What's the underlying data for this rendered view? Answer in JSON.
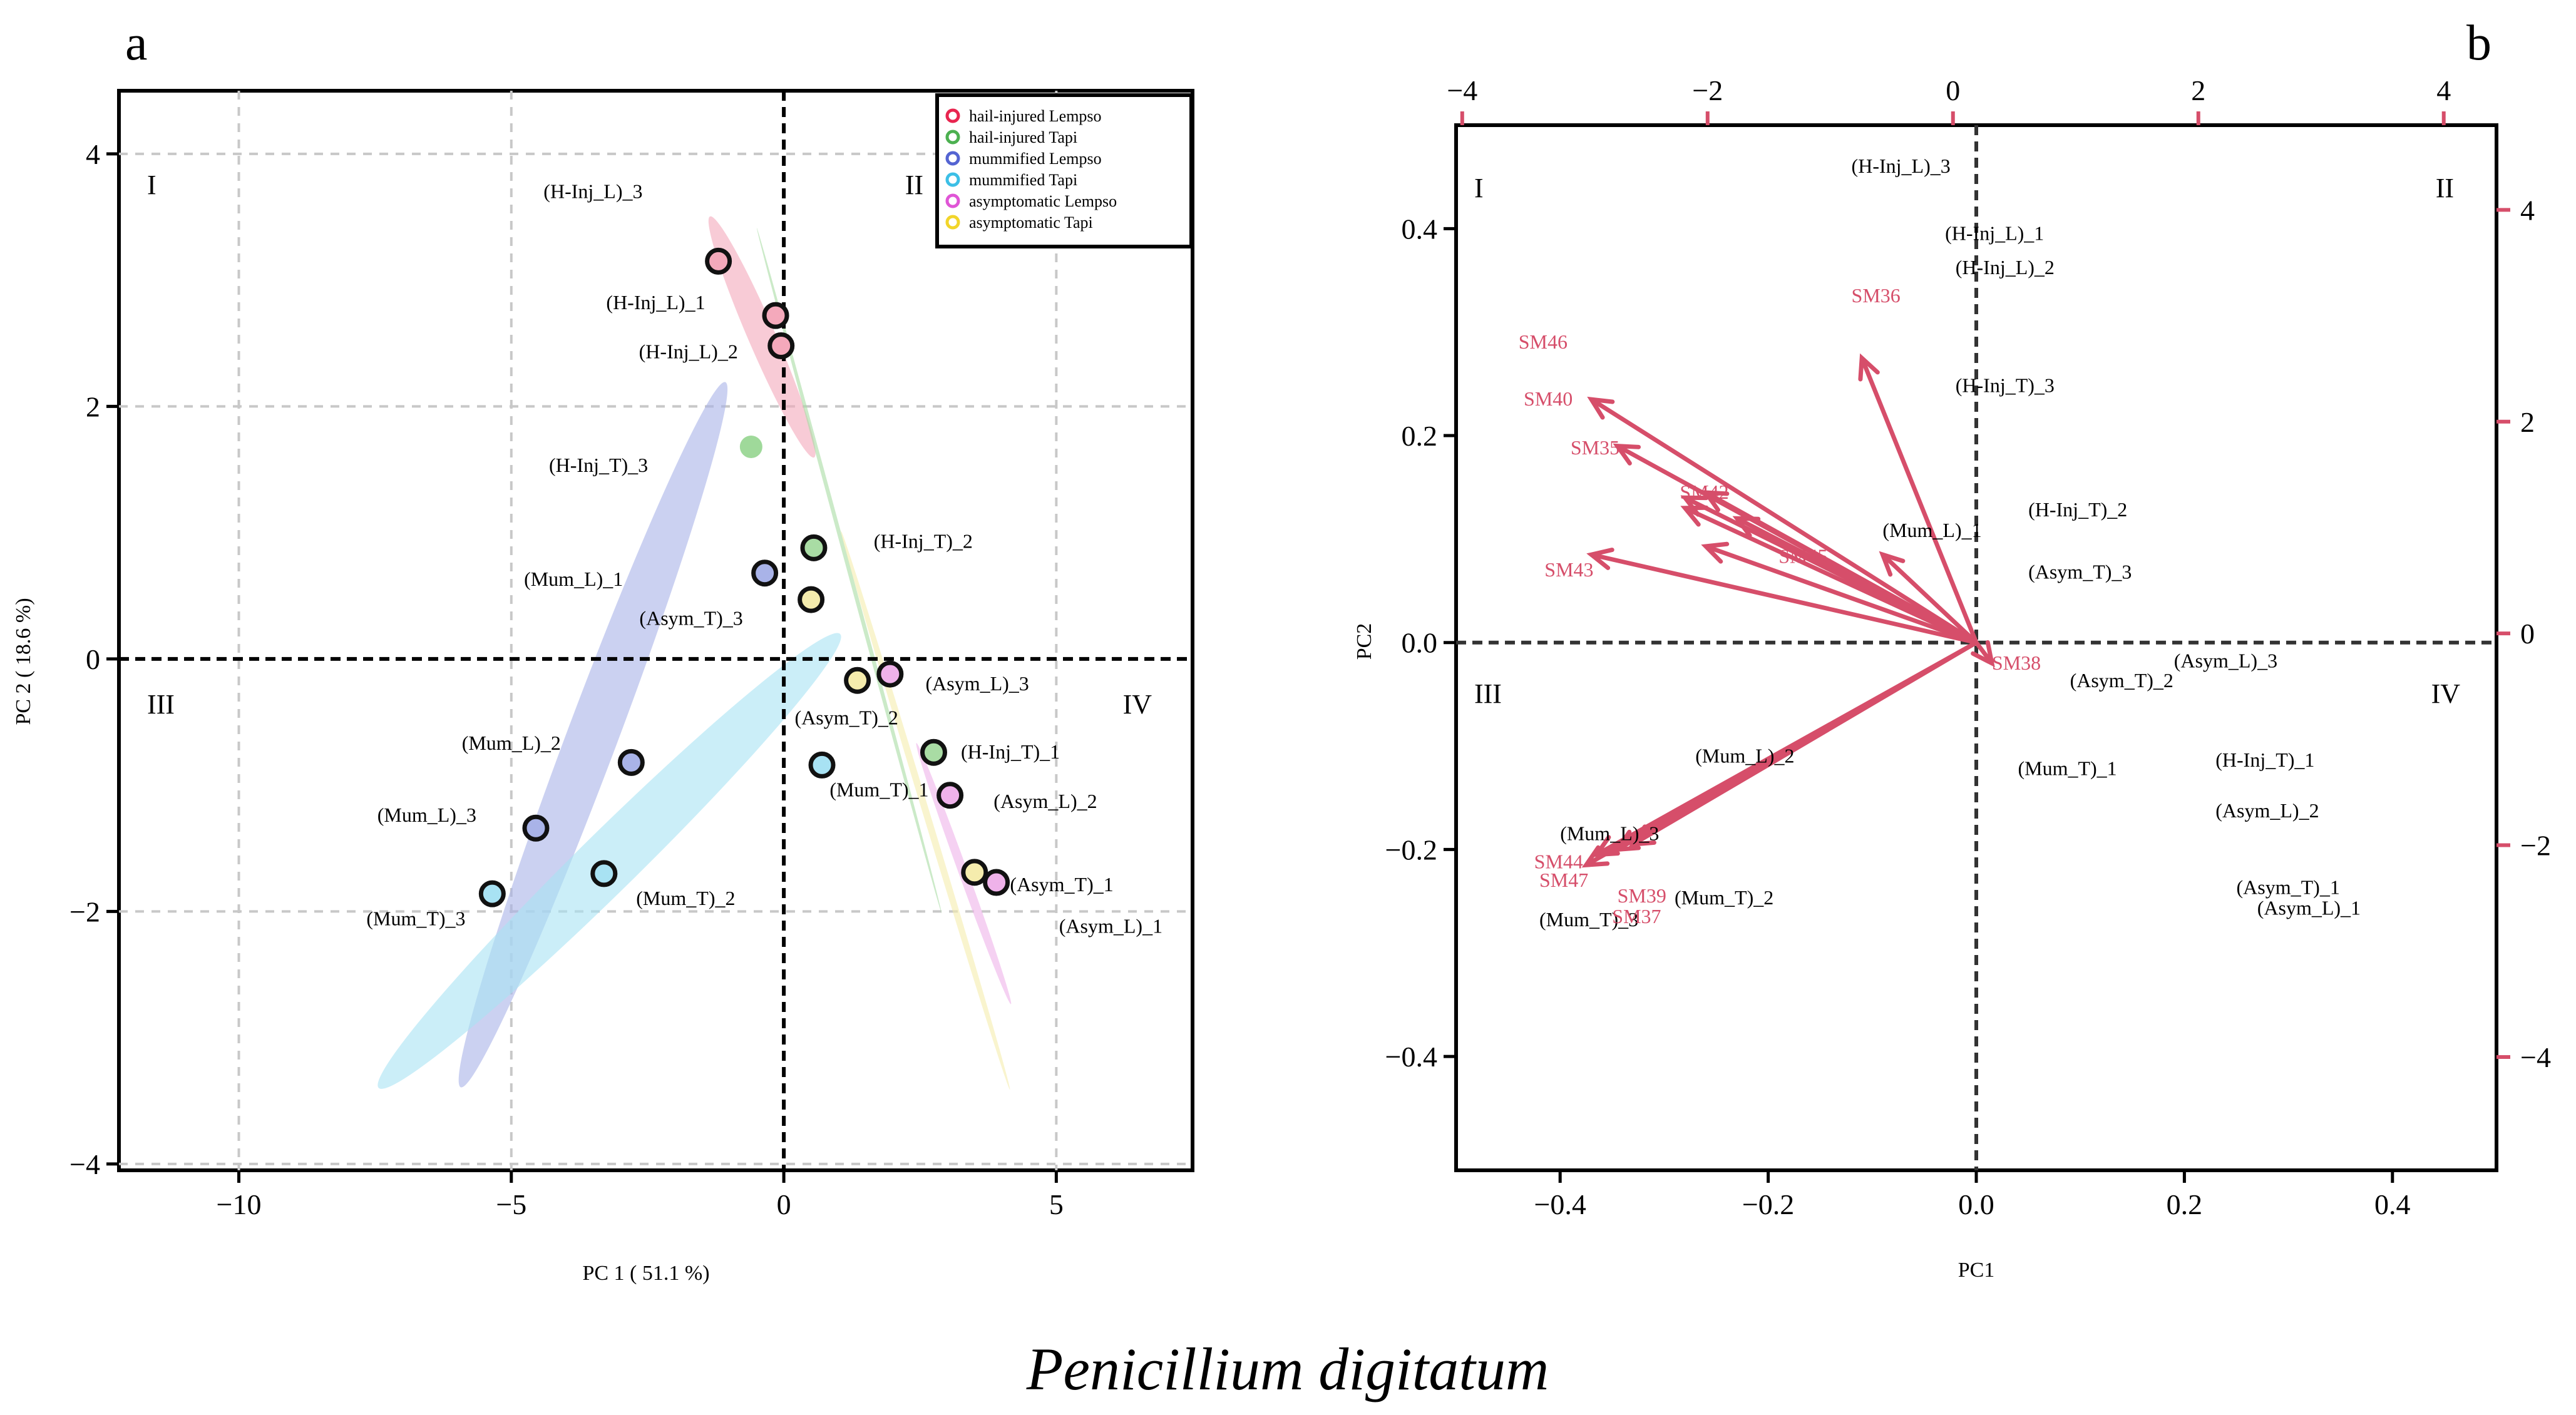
{
  "colors": {
    "hail_lempso": "#e8254f",
    "hail_tapi": "#4cb050",
    "mum_lempso": "#5464d2",
    "mum_tapi": "#3cbfe6",
    "asym_lempso": "#e055d6",
    "asym_tapi": "#f2d52a",
    "arrow": "#d64e6a",
    "fill_hail_lempso": "#f4a9bb",
    "fill_hail_tapi": "#a9dca4",
    "fill_mum_lempso": "#a9b3e8",
    "fill_mum_tapi": "#a8e2f3",
    "fill_asym_lempso": "#efb2ea",
    "fill_asym_tapi": "#f5ecad"
  },
  "figure_title": "Penicillium digitatum",
  "chart_data": [
    {
      "panel": "a",
      "type": "scatter",
      "xlabel": "PC 1 ( 51.1 %)",
      "ylabel": "PC 2 ( 18.6 %)",
      "xlim": [
        -12.2,
        7.5
      ],
      "ylim": [
        -4.05,
        4.5
      ],
      "xticks": [
        -10,
        -5,
        0,
        5
      ],
      "xtick_labels": [
        "−10",
        "−5",
        "0",
        "5"
      ],
      "yticks": [
        -4,
        -2,
        0,
        2,
        4
      ],
      "ytick_labels": [
        "−4",
        "−2",
        "0",
        "2",
        "4"
      ],
      "grid": true,
      "quadrants": [
        "I",
        "II",
        "III",
        "IV"
      ],
      "legend_position": "top-right",
      "legend": [
        {
          "label": "hail-injured  Lempso",
          "color": "#e8254f"
        },
        {
          "label": "hail-injured  Tapi",
          "color": "#4cb050"
        },
        {
          "label": "mummified Lempso",
          "color": "#5464d2"
        },
        {
          "label": "mummified Tapi",
          "color": "#3cbfe6"
        },
        {
          "label": "asymptomatic  Lempso",
          "color": "#e055d6"
        },
        {
          "label": "asymptomatic  Tapi",
          "color": "#f2d52a"
        }
      ],
      "ellipses": [
        {
          "group": "hail-injured  Lempso",
          "cx": -0.4,
          "cy": 2.55,
          "a": 2.7,
          "b": 0.28,
          "angle_deg": -45
        },
        {
          "group": "hail-injured  Tapi",
          "cx": 1.2,
          "cy": 0.7,
          "a": 6.4,
          "b": 0.05,
          "angle_deg": -58
        },
        {
          "group": "mummified Lempso",
          "cx": -3.5,
          "cy": -0.6,
          "a": 7.4,
          "b": 0.55,
          "angle_deg": 49
        },
        {
          "group": "mummified Tapi",
          "cx": -3.2,
          "cy": -1.6,
          "a": 9.2,
          "b": 0.5,
          "angle_deg": 23
        },
        {
          "group": "asymptomatic  Lempso",
          "cx": 3.3,
          "cy": -1.7,
          "a": 2.7,
          "b": 0.1,
          "angle_deg": -50
        },
        {
          "group": "asymptomatic  Tapi",
          "cx": 2.6,
          "cy": -1.2,
          "a": 5.4,
          "b": 0.08,
          "angle_deg": -55
        }
      ],
      "points": [
        {
          "label": "(H-Inj_L)_3",
          "group": "hail-injured  Lempso",
          "x": -1.2,
          "y": 3.15,
          "label_dx": -2.3,
          "label_dy": 0.55,
          "anchor": "middle"
        },
        {
          "label": "(H-Inj_L)_1",
          "group": "hail-injured  Lempso",
          "x": -0.15,
          "y": 2.72,
          "label_dx": -2.2,
          "label_dy": 0.1,
          "anchor": "middle"
        },
        {
          "label": "(H-Inj_L)_2",
          "group": "hail-injured  Lempso",
          "x": -0.05,
          "y": 2.48,
          "label_dx": -1.7,
          "label_dy": -0.05,
          "anchor": "middle"
        },
        {
          "label": "(H-Inj_T)_3",
          "group": "hail-injured  Tapi",
          "x": -0.6,
          "y": 1.68,
          "label_dx": -2.8,
          "label_dy": -0.15,
          "anchor": "middle",
          "faded": true
        },
        {
          "label": "(H-Inj_T)_2",
          "group": "hail-injured  Tapi",
          "x": 0.55,
          "y": 0.88,
          "label_dx": 1.1,
          "label_dy": 0.05,
          "anchor": "start"
        },
        {
          "label": "(H-Inj_T)_1",
          "group": "hail-injured  Tapi",
          "x": 2.75,
          "y": -0.74,
          "label_dx": 0.5,
          "label_dy": 0.0,
          "anchor": "start"
        },
        {
          "label": "(Mum_L)_1",
          "group": "mummified Lempso",
          "x": -0.35,
          "y": 0.68,
          "label_dx": -2.6,
          "label_dy": -0.05,
          "anchor": "end"
        },
        {
          "label": "(Mum_L)_2",
          "group": "mummified Lempso",
          "x": -2.8,
          "y": -0.82,
          "label_dx": -2.2,
          "label_dy": 0.15,
          "anchor": "middle"
        },
        {
          "label": "(Mum_L)_3",
          "group": "mummified Lempso",
          "x": -4.55,
          "y": -1.34,
          "label_dx": -2.0,
          "label_dy": 0.1,
          "anchor": "middle"
        },
        {
          "label": "(Mum_T)_1",
          "group": "mummified Tapi",
          "x": 0.7,
          "y": -0.84,
          "label_dx": 1.05,
          "label_dy": -0.2,
          "anchor": "middle"
        },
        {
          "label": "(Mum_T)_2",
          "group": "mummified Tapi",
          "x": -3.3,
          "y": -1.7,
          "label_dx": 1.5,
          "label_dy": -0.2,
          "anchor": "middle"
        },
        {
          "label": "(Mum_T)_3",
          "group": "mummified Tapi",
          "x": -5.35,
          "y": -1.86,
          "label_dx": -1.4,
          "label_dy": -0.2,
          "anchor": "middle"
        },
        {
          "label": "(Asym_T)_3",
          "group": "asymptomatic  Tapi",
          "x": 0.5,
          "y": 0.47,
          "label_dx": -2.2,
          "label_dy": -0.15,
          "anchor": "middle"
        },
        {
          "label": "(Asym_T)_2",
          "group": "asymptomatic  Tapi",
          "x": 1.35,
          "y": -0.17,
          "label_dx": -0.2,
          "label_dy": -0.3,
          "anchor": "middle"
        },
        {
          "label": "(Asym_T)_1",
          "group": "asymptomatic  Tapi",
          "x": 3.5,
          "y": -1.69,
          "label_dx": 1.6,
          "label_dy": -0.1,
          "anchor": "middle"
        },
        {
          "label": "(Asym_L)_3",
          "group": "asymptomatic  Lempso",
          "x": 1.95,
          "y": -0.12,
          "label_dx": 1.6,
          "label_dy": -0.08,
          "anchor": "middle"
        },
        {
          "label": "(Asym_L)_2",
          "group": "asymptomatic  Lempso",
          "x": 3.05,
          "y": -1.08,
          "label_dx": 1.75,
          "label_dy": -0.05,
          "anchor": "middle"
        },
        {
          "label": "(Asym_L)_1",
          "group": "asymptomatic  Lempso",
          "x": 3.9,
          "y": -1.77,
          "label_dx": 2.1,
          "label_dy": -0.35,
          "anchor": "middle"
        }
      ]
    },
    {
      "panel": "b",
      "type": "scatter",
      "xlabel": "PC1",
      "ylabel": "PC2",
      "xlim": [
        -0.5,
        0.5
      ],
      "ylim": [
        -0.51,
        0.5
      ],
      "xticks": [
        -0.4,
        -0.2,
        0.0,
        0.2,
        0.4
      ],
      "xtick_labels": [
        "−0.4",
        "−0.2",
        "0.0",
        "0.2",
        "0.4"
      ],
      "yticks": [
        -0.4,
        -0.2,
        0.0,
        0.2,
        0.4
      ],
      "ytick_labels": [
        "−0.4",
        "−0.2",
        "0.0",
        "0.2",
        "0.4"
      ],
      "secondary_xlim": [
        -4.05,
        4.43
      ],
      "secondary_xticks": [
        -4,
        -2,
        0,
        2,
        4
      ],
      "secondary_xtick_labels": [
        "−4",
        "−2",
        "0",
        "2",
        "4"
      ],
      "secondary_ylim": [
        -5.07,
        4.8
      ],
      "secondary_yticks": [
        -4,
        -2,
        0,
        2,
        4
      ],
      "secondary_ytick_labels": [
        "−4",
        "−2",
        "0",
        "2",
        "4"
      ],
      "quadrants": [
        "I",
        "II",
        "III",
        "IV"
      ],
      "sample_labels": [
        {
          "label": "(H-Inj_L)_3",
          "x": -0.12,
          "y": 0.46
        },
        {
          "label": "(H-Inj_L)_1",
          "x": -0.03,
          "y": 0.395
        },
        {
          "label": "(H-Inj_L)_2",
          "x": -0.02,
          "y": 0.362
        },
        {
          "label": "(H-Inj_T)_3",
          "x": -0.02,
          "y": 0.248
        },
        {
          "label": "(H-Inj_T)_2",
          "x": 0.05,
          "y": 0.128
        },
        {
          "label": "(Mum_L)_1",
          "x": -0.09,
          "y": 0.108
        },
        {
          "label": "(Asym_T)_3",
          "x": 0.05,
          "y": 0.068
        },
        {
          "label": "(Asym_L)_3",
          "x": 0.19,
          "y": -0.018
        },
        {
          "label": "(Asym_T)_2",
          "x": 0.09,
          "y": -0.037
        },
        {
          "label": "(Mum_L)_2",
          "x": -0.27,
          "y": -0.11
        },
        {
          "label": "(Mum_T)_1",
          "x": 0.04,
          "y": -0.122
        },
        {
          "label": "(H-Inj_T)_1",
          "x": 0.23,
          "y": -0.114
        },
        {
          "label": "(Asym_L)_2",
          "x": 0.23,
          "y": -0.163
        },
        {
          "label": "(Mum_L)_3",
          "x": -0.4,
          "y": -0.185
        },
        {
          "label": "(Asym_T)_1",
          "x": 0.25,
          "y": -0.237
        },
        {
          "label": "(Asym_L)_1",
          "x": 0.27,
          "y": -0.257
        },
        {
          "label": "(Mum_T)_2",
          "x": -0.29,
          "y": -0.247
        },
        {
          "label": "(Mum_T)_3",
          "x": -0.42,
          "y": -0.268
        }
      ],
      "loadings": [
        {
          "label": "SM36",
          "x": -0.12,
          "y": 0.335,
          "show_arrow": false
        },
        {
          "label": "SM46",
          "x": -0.44,
          "y": 0.29,
          "show_arrow": false
        },
        {
          "label": "SM40",
          "x": -0.37,
          "y": 0.235,
          "show_arrow": true
        },
        {
          "label": "SM35",
          "x": -0.345,
          "y": 0.19,
          "show_arrow": true
        },
        {
          "label": "SM43",
          "x": -0.37,
          "y": 0.085,
          "show_arrow": true
        },
        {
          "label": "SM42",
          "x": -0.26,
          "y": 0.145,
          "show_arrow": true
        },
        {
          "label": "SM45",
          "x": -0.26,
          "y": 0.093,
          "show_arrow": true
        },
        {
          "label": "SM38",
          "x": 0.015,
          "y": -0.02,
          "show_arrow": true
        },
        {
          "label": "SM44",
          "x": -0.375,
          "y": -0.215,
          "show_arrow": true
        },
        {
          "label": "SM47",
          "x": -0.365,
          "y": -0.205,
          "show_arrow": true
        },
        {
          "label": "SM39",
          "x": -0.345,
          "y": -0.2,
          "show_arrow": true
        },
        {
          "label": "SM37",
          "x": -0.33,
          "y": -0.195,
          "show_arrow": true
        }
      ],
      "extra_arrows": [
        {
          "x": -0.11,
          "y": 0.275
        },
        {
          "x": -0.28,
          "y": 0.14
        },
        {
          "x": -0.23,
          "y": 0.12
        },
        {
          "x": -0.28,
          "y": 0.13
        },
        {
          "x": -0.09,
          "y": 0.085
        }
      ]
    }
  ],
  "panel_labels": [
    "a",
    "b"
  ]
}
